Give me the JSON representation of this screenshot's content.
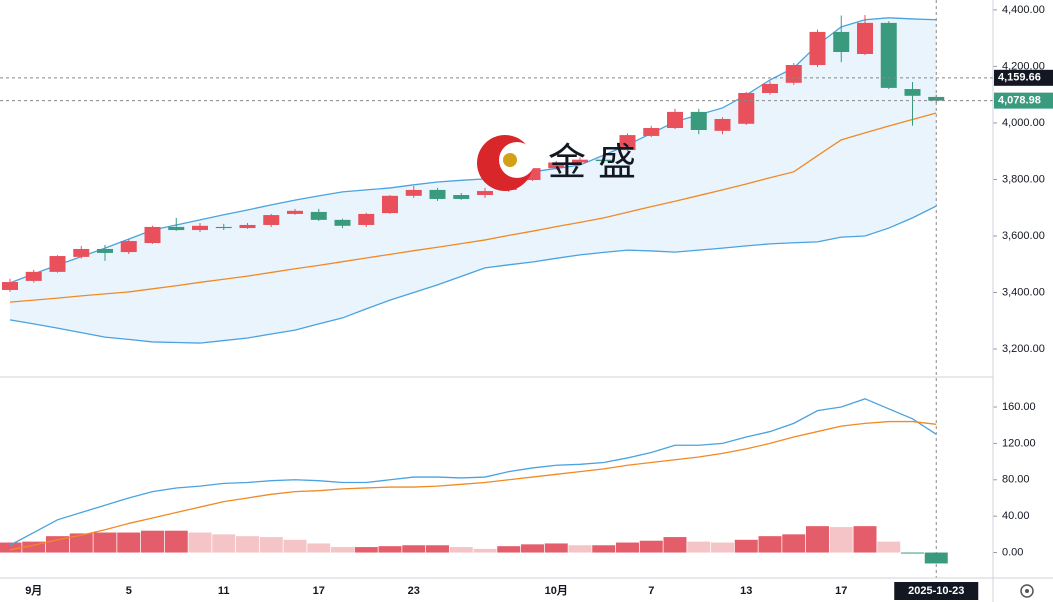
{
  "chart_data": [
    {
      "type": "candlestick",
      "watermark": "金盛",
      "categories": [
        null,
        "9月",
        null,
        null,
        null,
        "5",
        null,
        null,
        null,
        "11",
        null,
        null,
        null,
        "17",
        null,
        null,
        null,
        "23",
        null,
        null,
        null,
        null,
        null,
        "10月",
        null,
        null,
        null,
        "7",
        null,
        null,
        null,
        "13",
        null,
        null,
        null,
        "17",
        null,
        null,
        null,
        "2025-10-23"
      ],
      "open": [
        3409,
        3441,
        3473,
        3526,
        3554,
        3543,
        3575,
        3632,
        3621,
        3632,
        3628,
        3639,
        3678,
        3685,
        3657,
        3639,
        3681,
        3742,
        3763,
        3745,
        3745,
        3763,
        3798,
        3840,
        3860,
        3870,
        3904,
        3954,
        3982,
        4039,
        3972,
        3997,
        4106,
        4142,
        4205,
        4322,
        4244,
        4354,
        4120,
        4092
      ],
      "close": [
        3437,
        3473,
        3529,
        3554,
        3540,
        3582,
        3632,
        3621,
        3636,
        3628,
        3639,
        3674,
        3689,
        3657,
        3636,
        3678,
        3742,
        3763,
        3731,
        3731,
        3759,
        3798,
        3840,
        3860,
        3870,
        3865,
        3957,
        3982,
        4039,
        3975,
        4014,
        4106,
        4138,
        4205,
        4322,
        4251,
        4354,
        4124,
        4096,
        4078.98
      ],
      "high": [
        3448,
        3480,
        3532,
        3565,
        3568,
        3590,
        3636,
        3664,
        3646,
        3643,
        3646,
        3678,
        3696,
        3696,
        3661,
        3682,
        3745,
        3777,
        3770,
        3752,
        3770,
        3805,
        3845,
        3866,
        3878,
        3876,
        3962,
        3990,
        4050,
        4050,
        4020,
        4110,
        4148,
        4212,
        4330,
        4380,
        4382,
        4360,
        4145,
        4100
      ],
      "low": [
        3402,
        3435,
        3470,
        3520,
        3512,
        3536,
        3572,
        3618,
        3614,
        3621,
        3625,
        3632,
        3675,
        3653,
        3628,
        3632,
        3678,
        3735,
        3724,
        3728,
        3735,
        3756,
        3795,
        3835,
        3852,
        3858,
        3900,
        3950,
        3978,
        3960,
        3960,
        3993,
        4100,
        4135,
        4198,
        4215,
        4240,
        4120,
        3990,
        4070
      ],
      "up_color": "#e8505b",
      "down_color": "#3a9a7e",
      "series": [
        {
          "color": "#4aa3df",
          "values": [
            3434,
            3466,
            3497,
            3527,
            3557,
            3589,
            3621,
            3639,
            3657,
            3675,
            3692,
            3710,
            3727,
            3742,
            3756,
            3763,
            3770,
            3781,
            3791,
            3797,
            3802,
            3815,
            3827,
            3839,
            3851,
            3886,
            3922,
            3963,
            4004,
            4029,
            4053,
            4099,
            4152,
            4195,
            4276,
            4340,
            4365,
            4372,
            4368,
            4365
          ]
        },
        {
          "color": "#f08a24",
          "values": [
            3366,
            3373,
            3380,
            3388,
            3395,
            3402,
            3413,
            3424,
            3436,
            3447,
            3458,
            3471,
            3484,
            3496,
            3509,
            3522,
            3535,
            3548,
            3560,
            3573,
            3586,
            3602,
            3617,
            3633,
            3648,
            3664,
            3684,
            3704,
            3723,
            3743,
            3763,
            3784,
            3806,
            3827,
            3884,
            3940,
            3965,
            3989,
            4012,
            4035
          ]
        },
        {
          "color": "#4aa3df",
          "values": [
            3303,
            3289,
            3274,
            3258,
            3242,
            3234,
            3225,
            3223,
            3221,
            3230,
            3239,
            3253,
            3267,
            3289,
            3310,
            3342,
            3373,
            3400,
            3427,
            3457,
            3487,
            3498,
            3508,
            3521,
            3533,
            3542,
            3550,
            3547,
            3543,
            3550,
            3557,
            3565,
            3572,
            3576,
            3579,
            3596,
            3600,
            3628,
            3664,
            3706
          ]
        }
      ],
      "band_fill": "#eaf4fc",
      "ylim": [
        3101,
        4435
      ],
      "yticks": [
        {
          "value": 3200,
          "label": "3,200.00"
        },
        {
          "value": 3400,
          "label": "3,400.00"
        },
        {
          "value": 3600,
          "label": "3,600.00"
        },
        {
          "value": 3800,
          "label": "3,800.00"
        },
        {
          "value": 4000,
          "label": "4,000.00"
        },
        {
          "value": 4200,
          "label": "4,200.00"
        },
        {
          "value": 4400,
          "label": "4,400.00"
        }
      ],
      "price_lines": [
        {
          "value": 4159.66,
          "label": "4,159.66",
          "color": "#131722"
        },
        {
          "value": 4078.98,
          "label": "4,078.98",
          "color": "#3a9a7e"
        }
      ]
    },
    {
      "type": "macd",
      "series": [
        {
          "color": "#4aa3df",
          "values": [
            8,
            22,
            36,
            44,
            52,
            60,
            67,
            71,
            73,
            76,
            77,
            79,
            80,
            79,
            77,
            77,
            80,
            83,
            83,
            82,
            83,
            89,
            93,
            96,
            97,
            99,
            104,
            110,
            118,
            118,
            120,
            127,
            133,
            142,
            156,
            160,
            169,
            158,
            147,
            130
          ]
        },
        {
          "color": "#f08a24",
          "values": [
            3,
            8,
            14,
            19,
            25,
            32,
            38,
            44,
            50,
            56,
            60,
            64,
            67,
            68,
            70,
            71,
            72,
            72,
            73,
            75,
            77,
            80,
            83,
            86,
            89,
            92,
            96,
            99,
            102,
            105,
            109,
            114,
            120,
            127,
            133,
            139,
            142,
            144,
            144,
            141
          ]
        }
      ],
      "histogram": [
        11,
        12,
        18,
        21,
        22,
        22,
        24,
        24,
        22,
        20,
        18,
        17,
        14,
        10,
        6,
        6,
        7,
        8,
        8,
        6,
        4,
        7,
        9,
        10,
        8,
        8,
        11,
        13,
        17,
        12,
        11,
        14,
        18,
        20,
        29,
        28,
        29,
        12,
        -1,
        -12
      ],
      "hist_colors": {
        "rise": "#e35d6a",
        "fall": "#f5c4c7",
        "negative": "#3a9a7e"
      },
      "ylim": [
        -28,
        193
      ],
      "yticks": [
        {
          "value": 0,
          "label": "0.00"
        },
        {
          "value": 40,
          "label": "40.00"
        },
        {
          "value": 80,
          "label": "80.00"
        },
        {
          "value": 120,
          "label": "120.00"
        },
        {
          "value": 160,
          "label": "160.00"
        }
      ]
    }
  ]
}
